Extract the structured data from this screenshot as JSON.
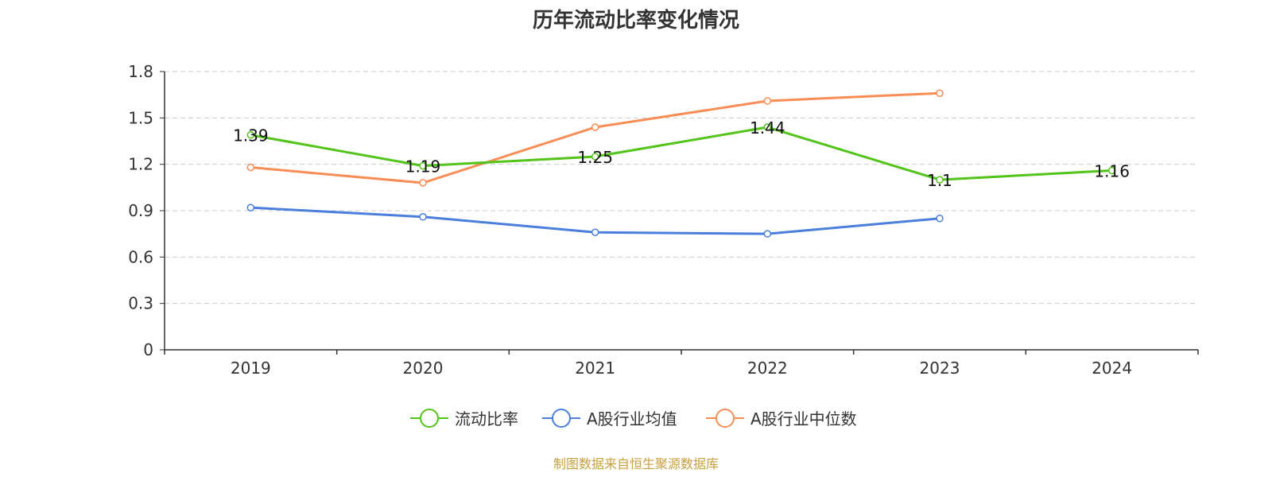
{
  "chart_data": {
    "type": "line",
    "title": "历年流动比率变化情况",
    "categories": [
      "2019",
      "2020",
      "2021",
      "2022",
      "2023",
      "2024"
    ],
    "ylim": [
      0,
      1.8
    ],
    "yticks": [
      "0",
      "0.3",
      "0.6",
      "0.9",
      "1.2",
      "1.5",
      "1.8"
    ],
    "grid": true,
    "legend_position": "bottom",
    "series": [
      {
        "name": "流动比率",
        "color": "#52c41a",
        "values": [
          1.39,
          1.19,
          1.25,
          1.44,
          1.1,
          1.16
        ],
        "labels": [
          "1.39",
          "1.19",
          "1.25",
          "1.44",
          "1.1",
          "1.16"
        ]
      },
      {
        "name": "A股行业均值",
        "color": "#4a7fdb",
        "values": [
          0.92,
          0.86,
          0.76,
          0.75,
          0.85,
          null
        ]
      },
      {
        "name": "A股行业中位数",
        "color": "#fa8c55",
        "values": [
          1.18,
          1.08,
          1.44,
          1.61,
          1.66,
          null
        ]
      }
    ]
  },
  "source": "制图数据来自恒生聚源数据库"
}
